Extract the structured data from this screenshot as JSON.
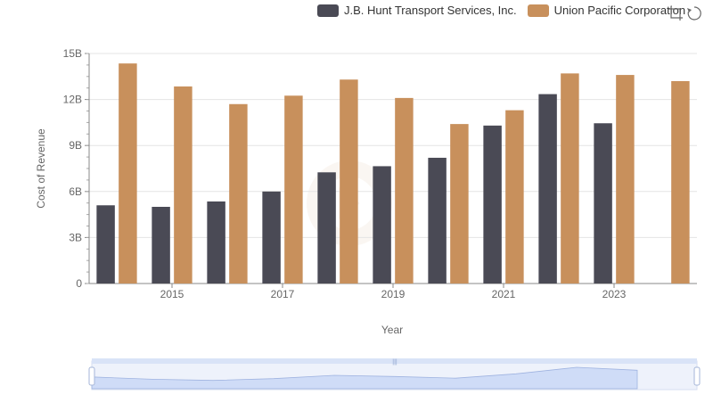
{
  "chart_data": {
    "type": "bar",
    "xlabel": "Year",
    "ylabel": "Cost of Revenue",
    "ylim": [
      0,
      15
    ],
    "y_ticks": [
      "0",
      "3B",
      "6B",
      "9B",
      "12B",
      "15B"
    ],
    "y_tick_values": [
      0,
      3,
      6,
      9,
      12,
      15
    ],
    "categories": [
      2014,
      2015,
      2016,
      2017,
      2018,
      2019,
      2020,
      2021,
      2022,
      2023,
      2024
    ],
    "x_tick_labels": [
      "2015",
      "2017",
      "2019",
      "2021",
      "2023"
    ],
    "x_tick_values": [
      2015,
      2017,
      2019,
      2021,
      2023
    ],
    "series": [
      {
        "name": "J.B. Hunt Transport Services, Inc.",
        "color": "#4a4a55",
        "values": [
          5.1,
          5.0,
          5.35,
          6.0,
          7.25,
          7.65,
          8.2,
          10.3,
          12.35,
          10.45,
          null
        ]
      },
      {
        "name": "Union Pacific Corporation",
        "color": "#c8905c",
        "values": [
          14.35,
          12.85,
          11.7,
          12.25,
          13.3,
          12.1,
          10.4,
          11.3,
          13.7,
          13.6,
          13.2
        ]
      }
    ],
    "grid": true,
    "legend_position": "top-right"
  },
  "toolbar": {
    "icons": [
      "zoom-icon",
      "restore-icon"
    ]
  }
}
